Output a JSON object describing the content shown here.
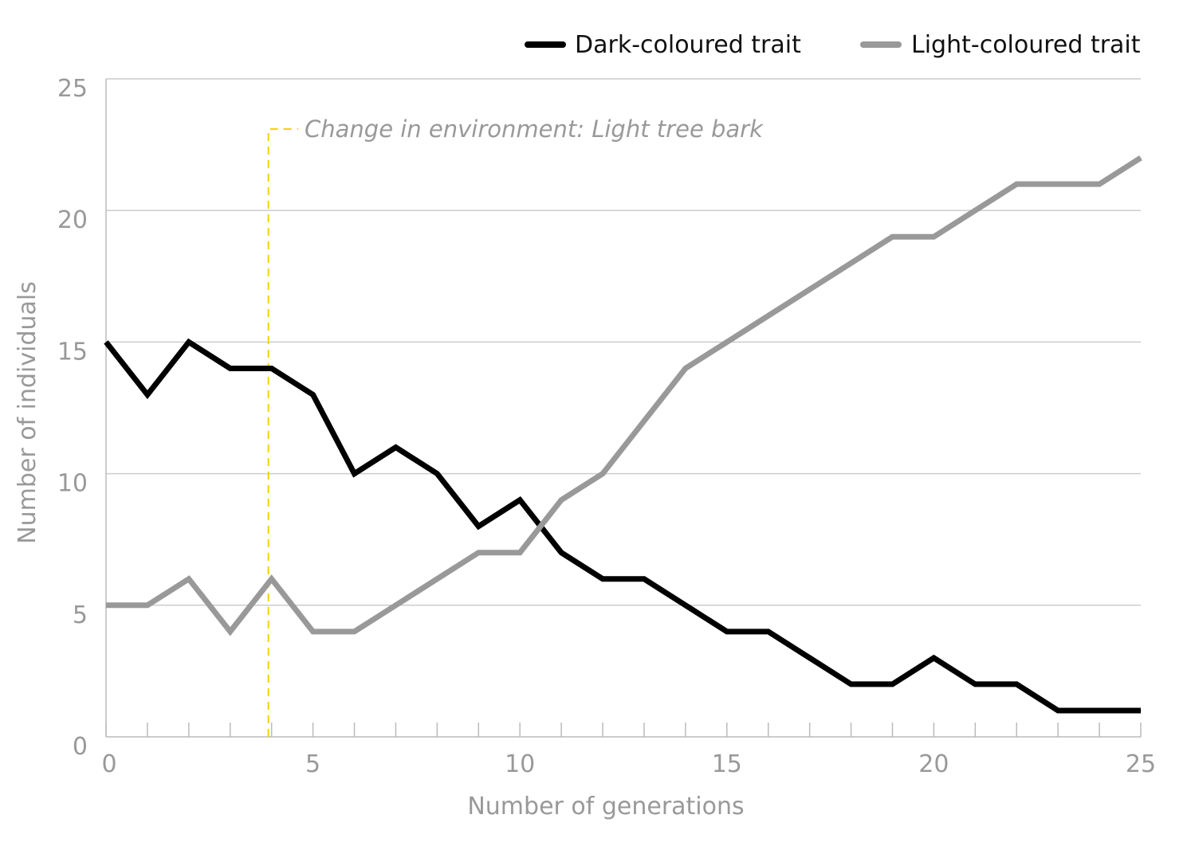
{
  "chart_data": {
    "type": "line",
    "title": "",
    "xlabel": "Number of generations",
    "ylabel": "Number of individuals",
    "xlim": [
      0,
      25
    ],
    "ylim": [
      0,
      25
    ],
    "x_ticks": [
      "0",
      "5",
      "10",
      "15",
      "20",
      "25"
    ],
    "y_ticks": [
      "0",
      "5",
      "10",
      "15",
      "20",
      "25"
    ],
    "x_minor_step": 1,
    "grid": "horizontal",
    "legend_position": "top-right",
    "x": [
      0,
      1,
      2,
      3,
      4,
      5,
      6,
      7,
      8,
      9,
      10,
      11,
      12,
      13,
      14,
      15,
      16,
      17,
      18,
      19,
      20,
      21,
      22,
      23,
      24,
      25
    ],
    "series": [
      {
        "name": "Dark-coloured trait",
        "color": "#000000",
        "values": [
          15,
          13,
          15,
          14,
          14,
          13,
          10,
          11,
          10,
          8,
          9,
          7,
          6,
          6,
          5,
          4,
          4,
          3,
          2,
          2,
          3,
          2,
          2,
          1,
          1,
          1
        ]
      },
      {
        "name": "Light-coloured trait",
        "color": "#999999",
        "values": [
          5,
          5,
          6,
          4,
          6,
          4,
          4,
          5,
          6,
          7,
          7,
          9,
          10,
          12,
          14,
          15,
          16,
          17,
          18,
          19,
          19,
          20,
          21,
          21,
          21,
          22
        ]
      }
    ],
    "annotation": {
      "text": "Change in environment: Light tree bark",
      "x": 4,
      "color": "#f5d20a"
    }
  }
}
